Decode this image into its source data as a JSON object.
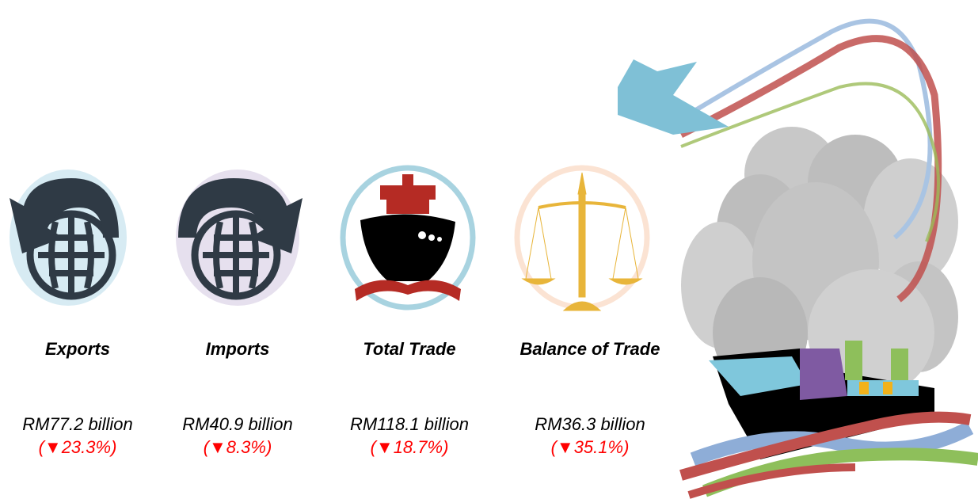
{
  "items": [
    {
      "label": "Exports",
      "value": "RM77.2 billion",
      "change": "(▼23.3%)"
    },
    {
      "label": "Imports",
      "value": "RM40.9 billion",
      "change": "(▼8.3%)"
    },
    {
      "label": "Total Trade",
      "value": "RM118.1 billion",
      "change": "(▼18.7%)"
    },
    {
      "label": "Balance of Trade",
      "value": "RM36.3 billion",
      "change": "(▼35.1%)"
    }
  ]
}
